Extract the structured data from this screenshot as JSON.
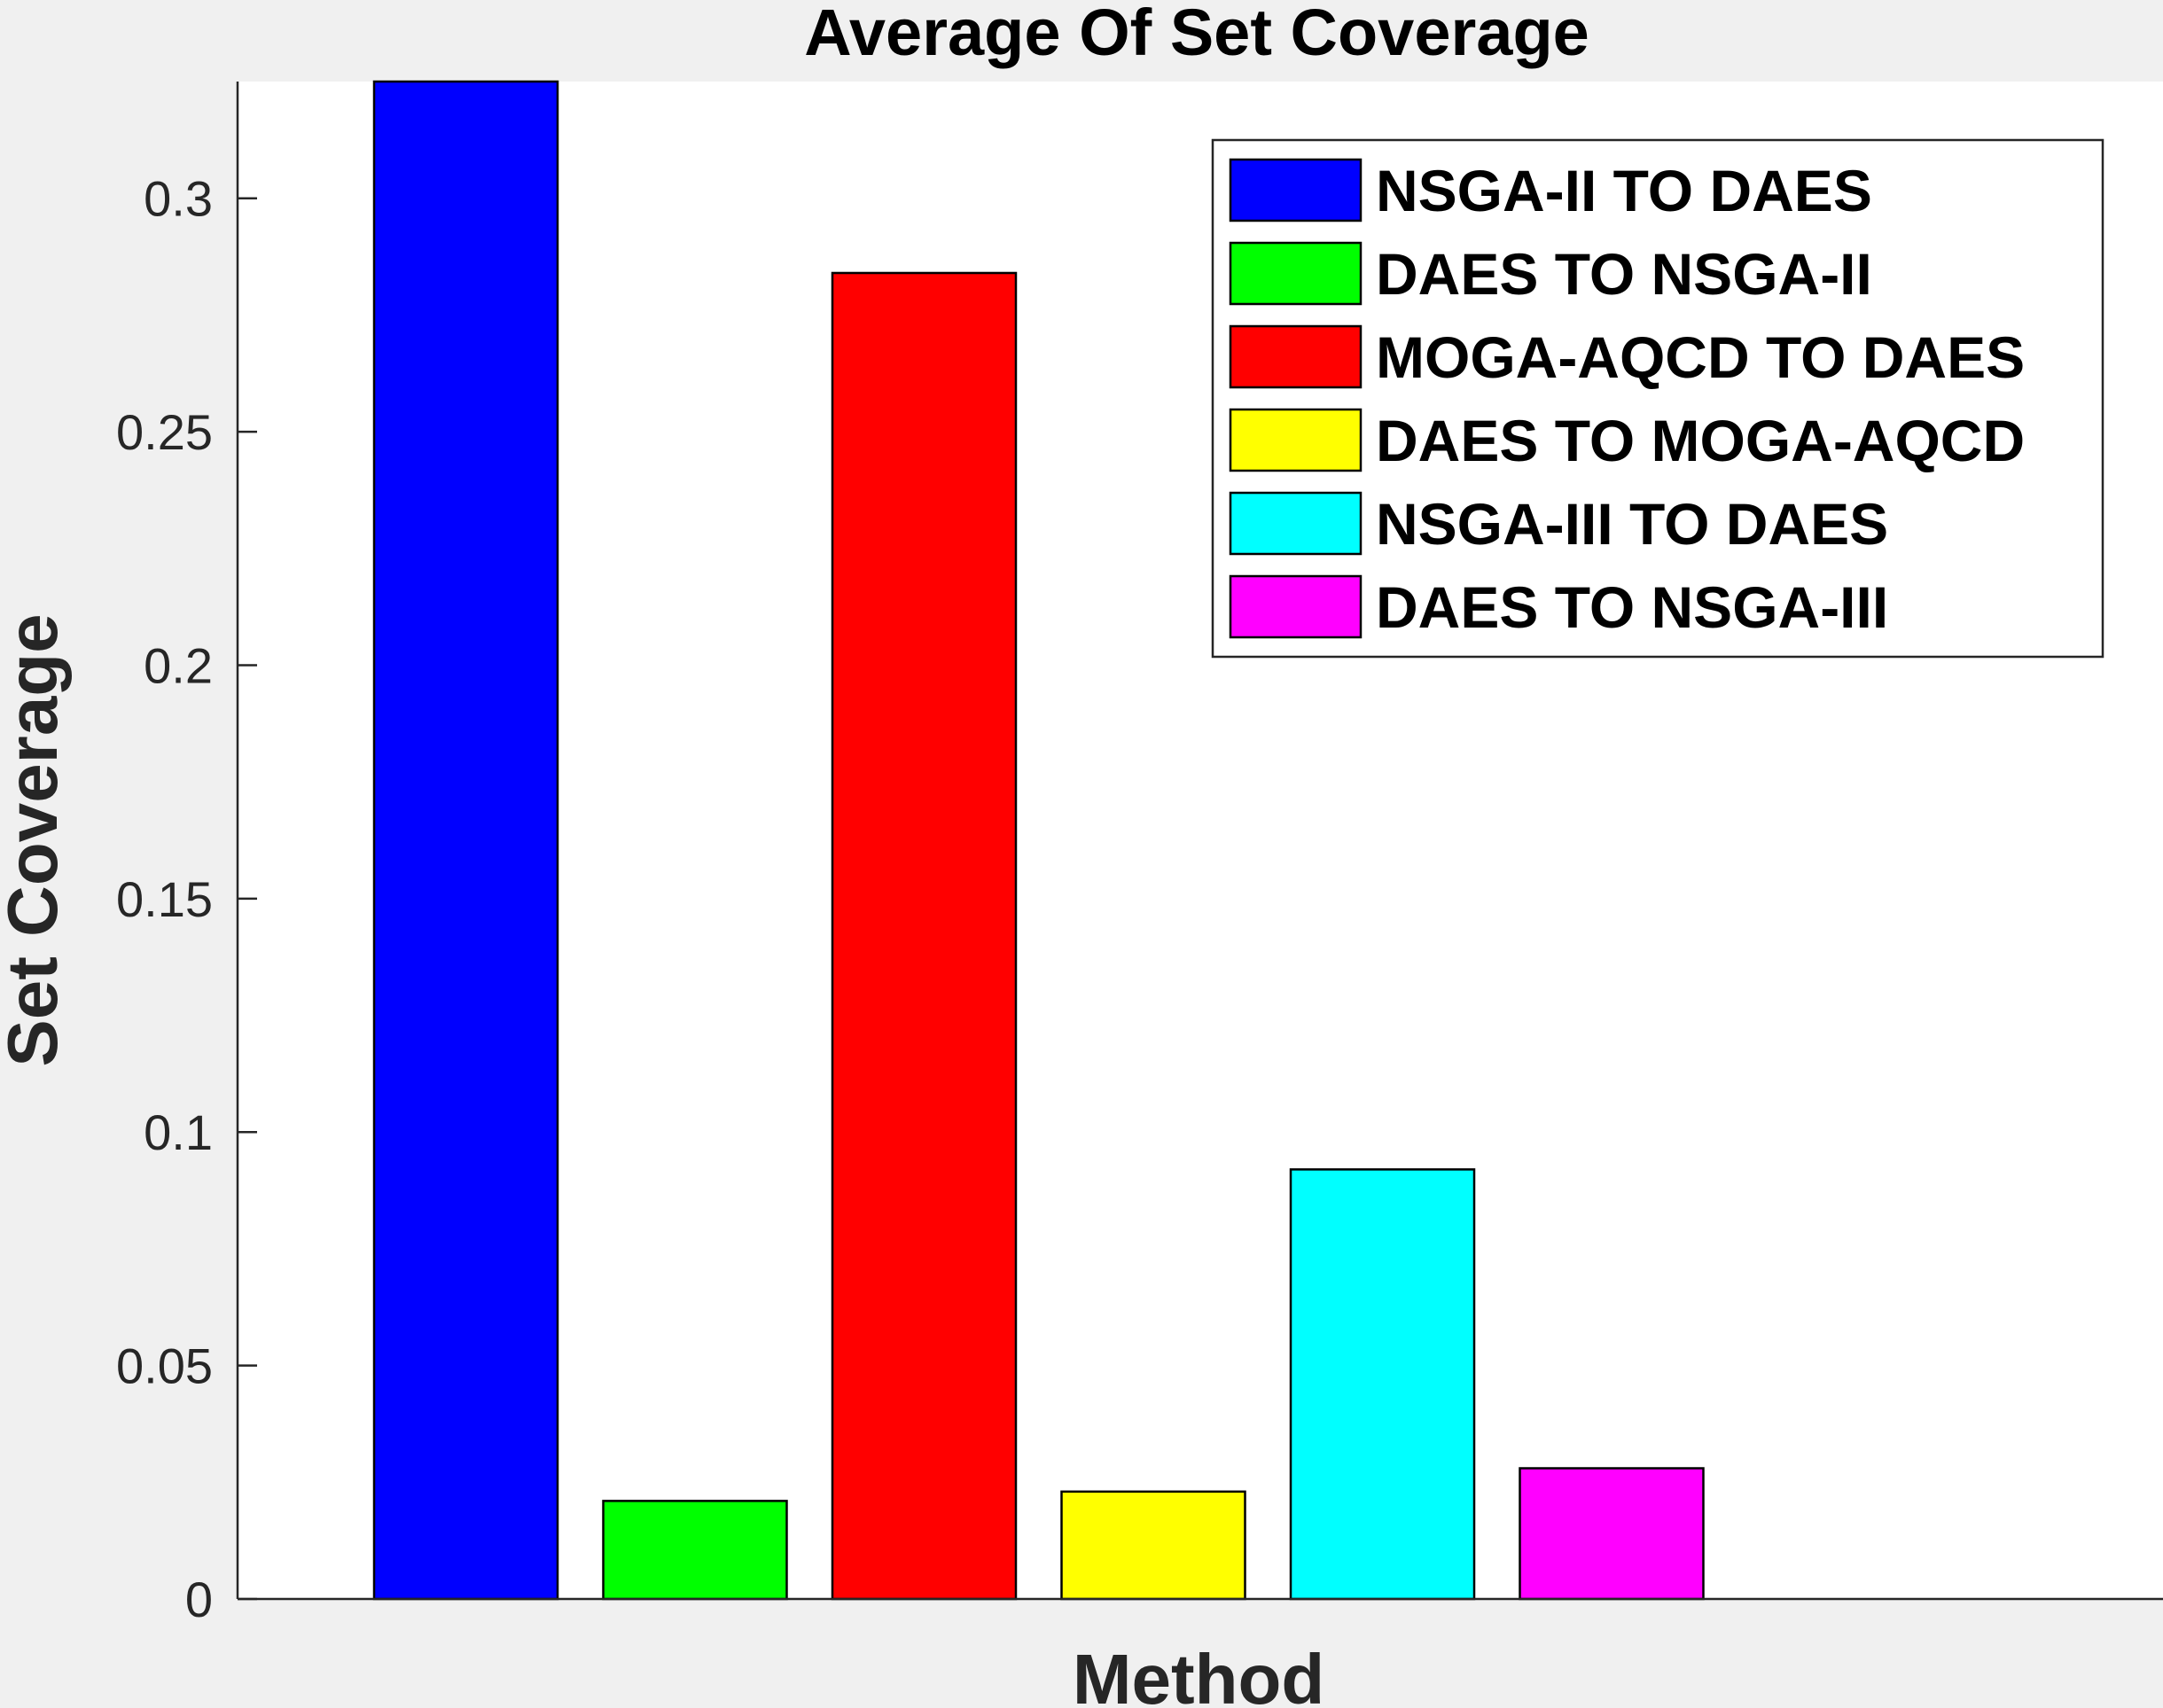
{
  "chart_data": {
    "type": "bar",
    "title": "Average Of Set Coverage",
    "xlabel": "Method",
    "ylabel": "Set Coverage",
    "ylim": [
      0,
      0.325
    ],
    "yticks": [
      0,
      0.05,
      0.1,
      0.15,
      0.2,
      0.25,
      0.3
    ],
    "ytick_labels": [
      "0",
      "0.05",
      "0.1",
      "0.15",
      "0.2",
      "0.25",
      "0.3"
    ],
    "grid": false,
    "legend_position": "top-right",
    "series": [
      {
        "name": "NSGA-II TO DAES",
        "value": 0.325,
        "color": "#0000ff"
      },
      {
        "name": "DAES TO NSGA-II",
        "value": 0.021,
        "color": "#00ff00"
      },
      {
        "name": "MOGA-AQCD TO DAES",
        "value": 0.284,
        "color": "#ff0000"
      },
      {
        "name": "DAES TO MOGA-AQCD",
        "value": 0.023,
        "color": "#ffff00"
      },
      {
        "name": "NSGA-III TO DAES",
        "value": 0.092,
        "color": "#00ffff"
      },
      {
        "name": "DAES TO NSGA-III",
        "value": 0.028,
        "color": "#ff00ff"
      }
    ]
  }
}
